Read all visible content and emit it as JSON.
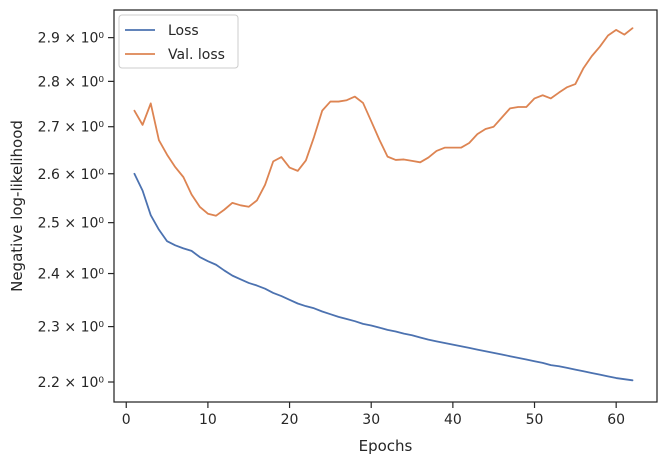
{
  "chart_data": {
    "type": "line",
    "xlabel": "Epochs",
    "ylabel": "Negative log-likelihood",
    "yscale": "log",
    "xlim": [
      -1.5,
      65
    ],
    "ylim": [
      2.165,
      2.965
    ],
    "xticks": [
      0,
      10,
      20,
      30,
      40,
      50,
      60
    ],
    "yticks": [
      {
        "value": 2.2,
        "label": "2.2 × 10⁰"
      },
      {
        "value": 2.3,
        "label": "2.3 × 10⁰"
      },
      {
        "value": 2.4,
        "label": "2.4 × 10⁰"
      },
      {
        "value": 2.5,
        "label": "2.5 × 10⁰"
      },
      {
        "value": 2.6,
        "label": "2.6 × 10⁰"
      },
      {
        "value": 2.7,
        "label": "2.7 × 10⁰"
      },
      {
        "value": 2.8,
        "label": "2.8 × 10⁰"
      },
      {
        "value": 2.9,
        "label": "2.9 × 10⁰"
      }
    ],
    "grid": false,
    "legend_position": "top-left",
    "x": [
      1,
      2,
      3,
      4,
      5,
      6,
      7,
      8,
      9,
      10,
      11,
      12,
      13,
      14,
      15,
      16,
      17,
      18,
      19,
      20,
      21,
      22,
      23,
      24,
      25,
      26,
      27,
      28,
      29,
      30,
      31,
      32,
      33,
      34,
      35,
      36,
      37,
      38,
      39,
      40,
      41,
      42,
      43,
      44,
      45,
      46,
      47,
      48,
      49,
      50,
      51,
      52,
      53,
      54,
      55,
      56,
      57,
      58,
      59,
      60,
      61,
      62
    ],
    "series": [
      {
        "name": "Loss",
        "color": "#4c72b0",
        "values": [
          2.6,
          2.565,
          2.515,
          2.486,
          2.463,
          2.455,
          2.449,
          2.444,
          2.432,
          2.424,
          2.417,
          2.406,
          2.396,
          2.389,
          2.382,
          2.377,
          2.371,
          2.363,
          2.357,
          2.35,
          2.343,
          2.338,
          2.334,
          2.328,
          2.323,
          2.318,
          2.314,
          2.31,
          2.305,
          2.302,
          2.298,
          2.294,
          2.291,
          2.287,
          2.284,
          2.28,
          2.276,
          2.273,
          2.27,
          2.267,
          2.264,
          2.261,
          2.258,
          2.255,
          2.252,
          2.249,
          2.246,
          2.243,
          2.24,
          2.237,
          2.234,
          2.23,
          2.228,
          2.225,
          2.222,
          2.219,
          2.216,
          2.213,
          2.21,
          2.207,
          2.205,
          2.203
        ]
      },
      {
        "name": "Val. loss",
        "color": "#dd8452",
        "values": [
          2.735,
          2.704,
          2.751,
          2.671,
          2.64,
          2.614,
          2.593,
          2.557,
          2.532,
          2.518,
          2.514,
          2.526,
          2.54,
          2.535,
          2.532,
          2.545,
          2.577,
          2.626,
          2.635,
          2.613,
          2.606,
          2.628,
          2.678,
          2.735,
          2.755,
          2.755,
          2.758,
          2.766,
          2.752,
          2.712,
          2.672,
          2.636,
          2.629,
          2.63,
          2.627,
          2.624,
          2.634,
          2.648,
          2.655,
          2.655,
          2.655,
          2.665,
          2.684,
          2.695,
          2.7,
          2.72,
          2.74,
          2.743,
          2.743,
          2.762,
          2.769,
          2.762,
          2.775,
          2.787,
          2.794,
          2.83,
          2.857,
          2.879,
          2.905,
          2.918,
          2.907,
          2.922
        ]
      }
    ]
  }
}
